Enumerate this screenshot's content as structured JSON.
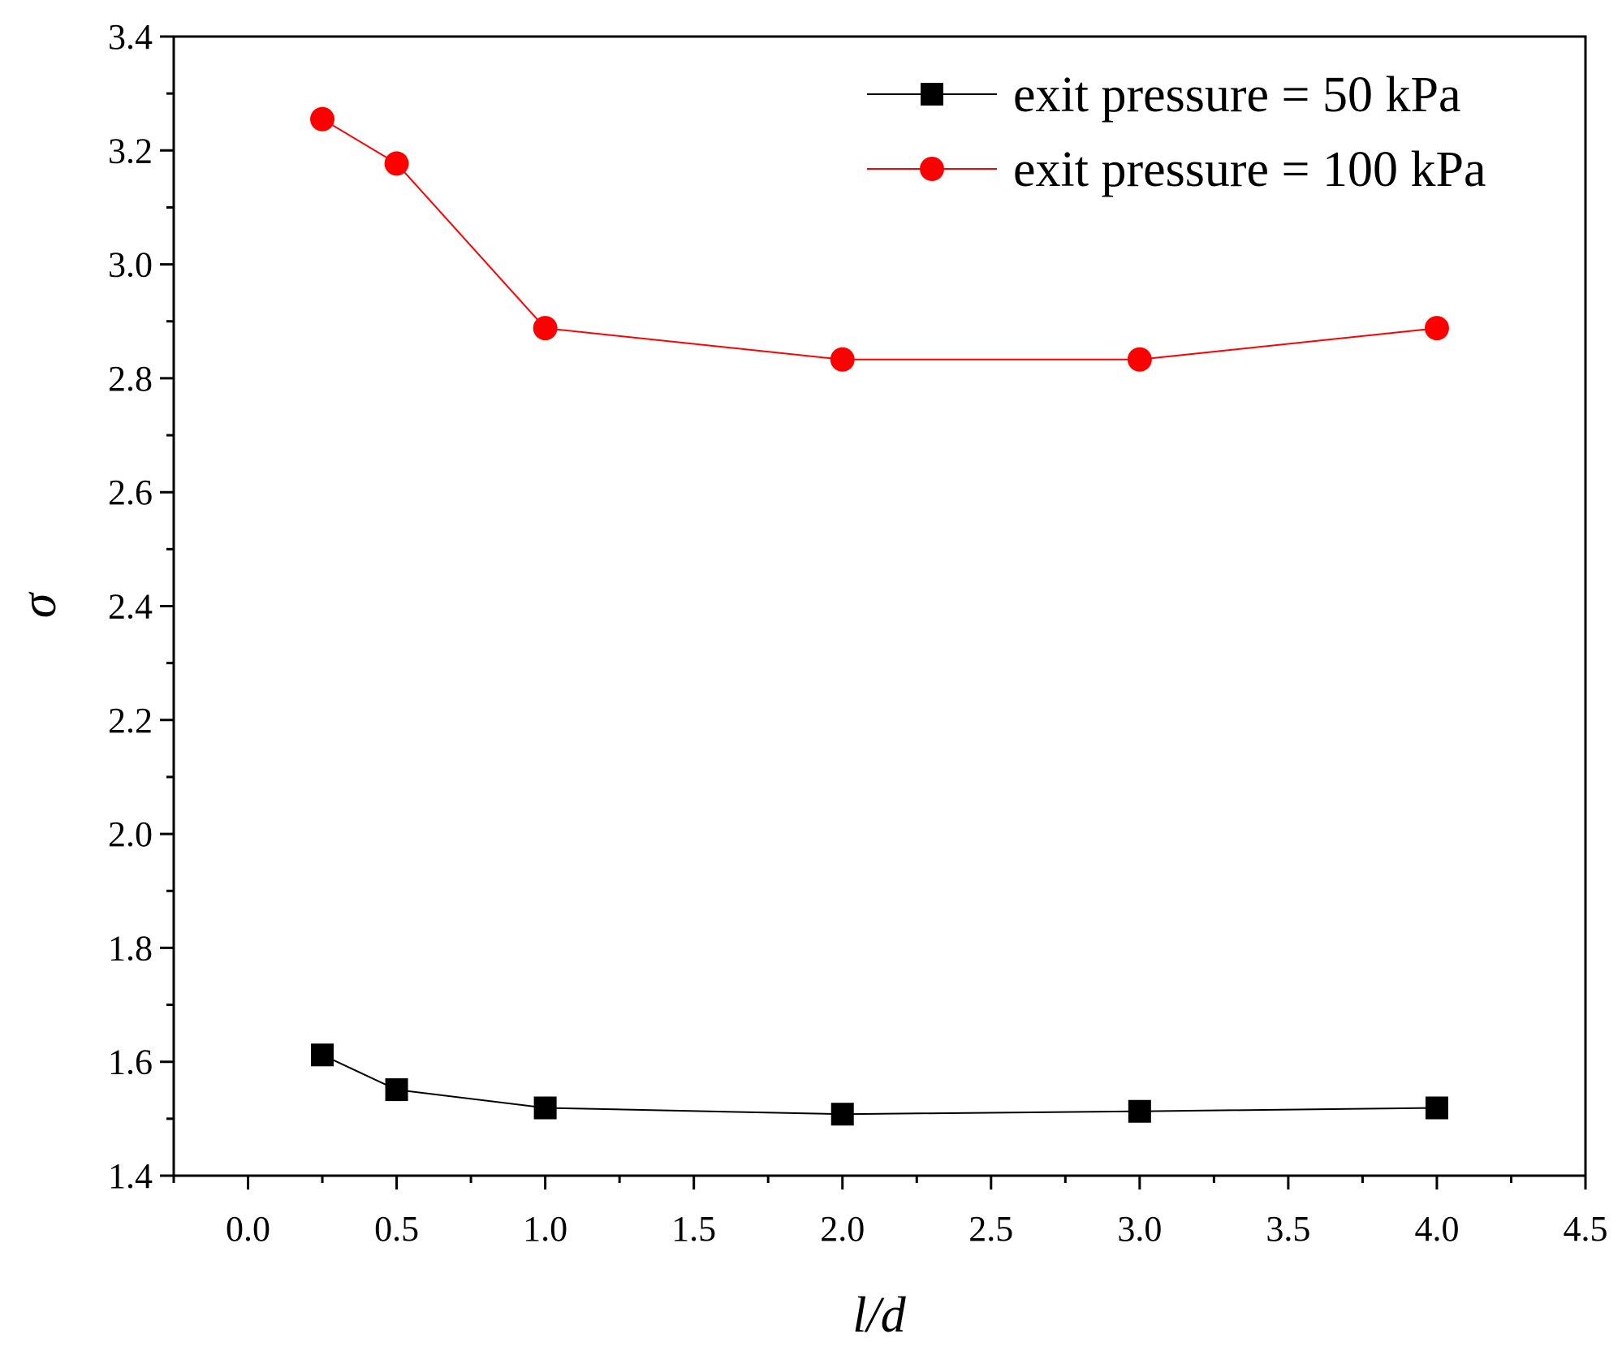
{
  "chart_data": {
    "type": "line",
    "title": "",
    "xlabel": "l/d",
    "ylabel": "σ",
    "xlim": [
      -0.25,
      4.5
    ],
    "ylim": [
      1.4,
      3.4
    ],
    "xticks": [
      0.0,
      0.5,
      1.0,
      1.5,
      2.0,
      2.5,
      3.0,
      3.5,
      4.0,
      4.5
    ],
    "xtick_labels": [
      "0.0",
      "0.5",
      "1.0",
      "1.5",
      "2.0",
      "2.5",
      "3.0",
      "3.5",
      "4.0",
      "4.5"
    ],
    "yticks": [
      1.4,
      1.6,
      1.8,
      2.0,
      2.2,
      2.4,
      2.6,
      2.8,
      3.0,
      3.2,
      3.4
    ],
    "ytick_labels": [
      "1.4",
      "1.6",
      "1.8",
      "2.0",
      "2.2",
      "2.4",
      "2.6",
      "2.8",
      "3.0",
      "3.2",
      "3.4"
    ],
    "grid": false,
    "legend_position": "top-right",
    "x": [
      0.25,
      0.5,
      1.0,
      2.0,
      3.0,
      4.0
    ],
    "series": [
      {
        "name": "exit pressure = 50 kPa",
        "color": "#000000",
        "marker": "square",
        "values": [
          1.612,
          1.551,
          1.519,
          1.508,
          1.513,
          1.519
        ]
      },
      {
        "name": "exit pressure = 100 kPa",
        "color": "#ff0000",
        "marker": "circle",
        "values": [
          3.255,
          3.177,
          2.888,
          2.833,
          2.833,
          2.888
        ]
      }
    ]
  }
}
